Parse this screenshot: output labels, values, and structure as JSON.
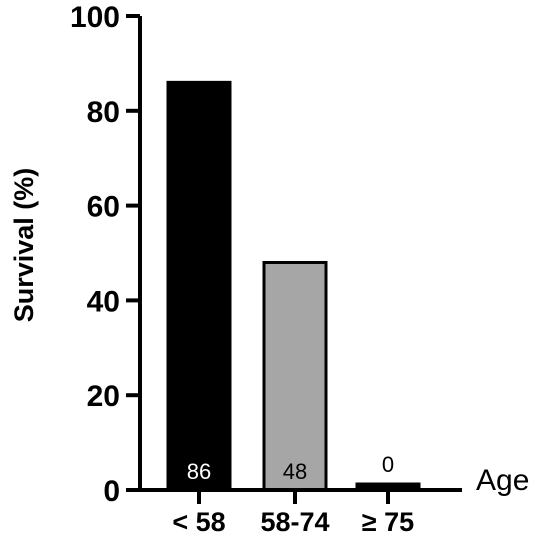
{
  "chart_data": {
    "type": "bar",
    "categories": [
      "< 58",
      "58-74",
      "≥ 75"
    ],
    "values": [
      86,
      48,
      0
    ],
    "data_labels": [
      "86",
      "48",
      "0"
    ],
    "bar_colors": [
      "#000000",
      "#a6a6a6",
      "#000000"
    ],
    "data_label_colors": [
      "#ffffff",
      "#000000",
      "#000000"
    ],
    "ylabel": "Survival (%)",
    "xlabel": "Age",
    "ylim": [
      0,
      100
    ],
    "yticks": [
      "0",
      "20",
      "40",
      "60",
      "80",
      "100"
    ],
    "grid": false
  }
}
